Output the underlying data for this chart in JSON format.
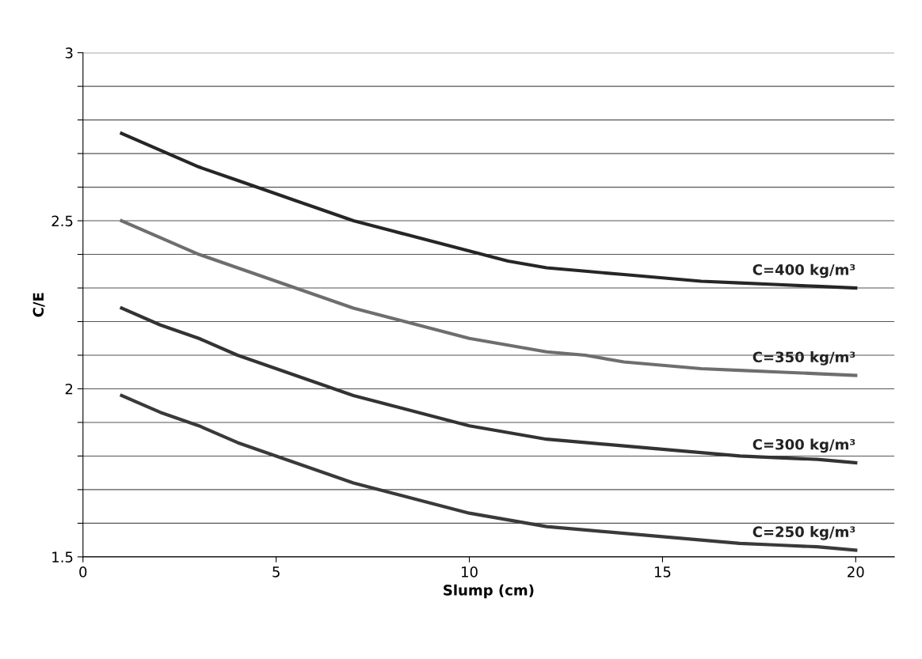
{
  "chart_data": {
    "type": "line",
    "xlabel": "Slump (cm)",
    "ylabel": "C/E",
    "x": [
      1,
      2,
      3,
      4,
      5,
      6,
      7,
      8,
      9,
      10,
      11,
      12,
      13,
      14,
      15,
      16,
      17,
      18,
      19,
      20
    ],
    "series": [
      {
        "name": "C=400 kg/m³",
        "color": "#262626",
        "values": [
          2.76,
          2.71,
          2.66,
          2.62,
          2.58,
          2.54,
          2.5,
          2.47,
          2.44,
          2.41,
          2.38,
          2.36,
          2.35,
          2.34,
          2.33,
          2.32,
          2.315,
          2.31,
          2.305,
          2.3
        ]
      },
      {
        "name": "C=350 kg/m³",
        "color": "#6e6e6e",
        "values": [
          2.5,
          2.45,
          2.4,
          2.36,
          2.32,
          2.28,
          2.24,
          2.21,
          2.18,
          2.15,
          2.13,
          2.11,
          2.1,
          2.08,
          2.07,
          2.06,
          2.055,
          2.05,
          2.045,
          2.04
        ]
      },
      {
        "name": "C=300 kg/m³",
        "color": "#333333",
        "values": [
          2.24,
          2.19,
          2.15,
          2.1,
          2.06,
          2.02,
          1.98,
          1.95,
          1.92,
          1.89,
          1.87,
          1.85,
          1.84,
          1.83,
          1.82,
          1.81,
          1.8,
          1.795,
          1.79,
          1.78
        ]
      },
      {
        "name": "C=250 kg/m³",
        "color": "#3a3a3a",
        "values": [
          1.98,
          1.93,
          1.89,
          1.84,
          1.8,
          1.76,
          1.72,
          1.69,
          1.66,
          1.63,
          1.61,
          1.59,
          1.58,
          1.57,
          1.56,
          1.55,
          1.54,
          1.535,
          1.53,
          1.52
        ]
      }
    ],
    "xlim": [
      0,
      21
    ],
    "xticks": [
      0,
      5,
      10,
      15,
      20
    ],
    "ylim": [
      1.5,
      3
    ],
    "yticks": [
      1.5,
      {
        "value": 1.6,
        "label": null
      },
      {
        "value": 1.7,
        "label": null
      },
      {
        "value": 1.8,
        "label": null
      },
      {
        "value": 1.9,
        "label": null
      },
      2,
      {
        "value": 2.1,
        "label": null
      },
      {
        "value": 2.2,
        "label": null
      },
      {
        "value": 2.3,
        "label": null
      },
      {
        "value": 2.4,
        "label": null
      },
      2.5,
      {
        "value": 2.6,
        "label": null
      },
      {
        "value": 2.7,
        "label": null
      },
      {
        "value": 2.8,
        "label": null
      },
      {
        "value": 2.9,
        "label": null
      },
      3
    ],
    "grid": "y",
    "legend": false,
    "marker": "none",
    "line_style": "solid"
  }
}
